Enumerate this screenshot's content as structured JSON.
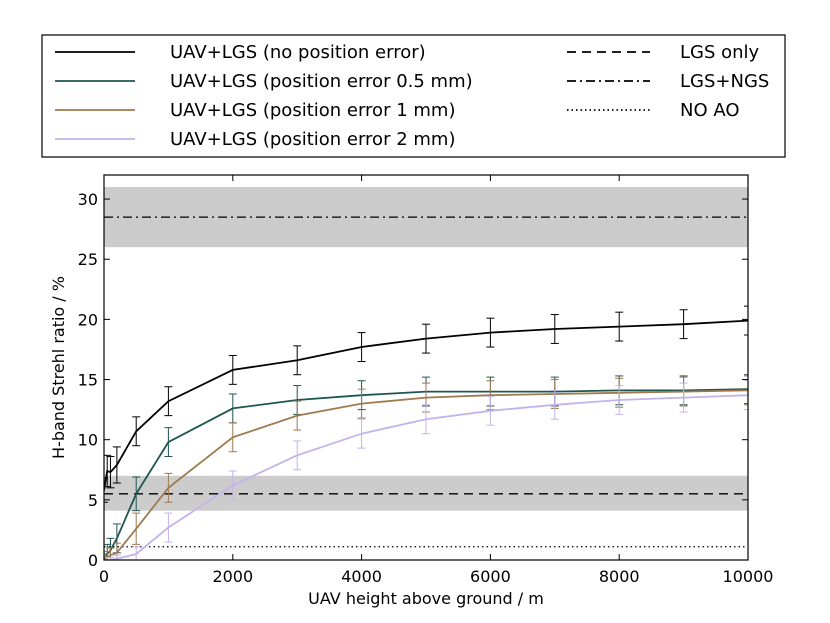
{
  "chart_data": {
    "type": "line",
    "title": "",
    "xlabel": "UAV height above ground / m",
    "ylabel": "H-band Strehl ratio / %",
    "xlim": [
      0,
      10000
    ],
    "ylim": [
      0,
      32
    ],
    "xticks": [
      0,
      2000,
      4000,
      6000,
      8000,
      10000
    ],
    "xtick_labels": [
      "0",
      "2000",
      "4000",
      "6000",
      "8000",
      "10000"
    ],
    "yticks": [
      0,
      5,
      10,
      15,
      20,
      25,
      30
    ],
    "ytick_labels": [
      "0",
      "5",
      "10",
      "15",
      "20",
      "25",
      "30"
    ],
    "grid": false,
    "legend_position": "top, above plot",
    "series": [
      {
        "name": "UAV+LGS (no position error)",
        "color": "#000000",
        "x": [
          0,
          50,
          100,
          200,
          500,
          1000,
          2000,
          3000,
          4000,
          5000,
          6000,
          7000,
          8000,
          9000,
          10000
        ],
        "y": [
          5.8,
          7.4,
          7.3,
          7.9,
          10.7,
          13.2,
          15.8,
          16.6,
          17.7,
          18.4,
          18.9,
          19.2,
          19.4,
          19.6,
          19.9
        ],
        "err": [
          1.0,
          1.3,
          1.3,
          1.5,
          1.2,
          1.2,
          1.2,
          1.2,
          1.2,
          1.2,
          1.2,
          1.2,
          1.2,
          1.2,
          1.2
        ]
      },
      {
        "name": "UAV+LGS (position error 0.5 mm)",
        "color": "#1e5652",
        "x": [
          0,
          50,
          100,
          200,
          500,
          1000,
          2000,
          3000,
          4000,
          5000,
          6000,
          7000,
          8000,
          9000,
          10000
        ],
        "y": [
          0.0,
          0.5,
          0.8,
          1.8,
          5.5,
          9.8,
          12.6,
          13.3,
          13.7,
          14.0,
          14.0,
          14.0,
          14.1,
          14.1,
          14.2
        ],
        "err": [
          0.5,
          0.8,
          1.0,
          1.2,
          1.4,
          1.2,
          1.2,
          1.2,
          1.2,
          1.2,
          1.2,
          1.2,
          1.2,
          1.2,
          1.2
        ]
      },
      {
        "name": "UAV+LGS (position error 1 mm)",
        "color": "#a0794e",
        "x": [
          0,
          50,
          100,
          200,
          500,
          1000,
          2000,
          3000,
          4000,
          5000,
          6000,
          7000,
          8000,
          9000,
          10000
        ],
        "y": [
          0.0,
          0.2,
          0.4,
          0.6,
          2.6,
          6.0,
          10.2,
          12.0,
          13.0,
          13.5,
          13.7,
          13.8,
          13.9,
          14.0,
          14.1
        ],
        "err": [
          0.3,
          0.5,
          0.6,
          0.8,
          1.3,
          1.2,
          1.2,
          1.2,
          1.2,
          1.2,
          1.2,
          1.2,
          1.2,
          1.2,
          1.2
        ]
      },
      {
        "name": "UAV+LGS (position error 2 mm)",
        "color": "#c3b3ec",
        "x": [
          0,
          50,
          100,
          200,
          500,
          1000,
          2000,
          3000,
          4000,
          5000,
          6000,
          7000,
          8000,
          9000,
          10000
        ],
        "y": [
          0.0,
          0.0,
          0.0,
          0.1,
          0.5,
          2.7,
          6.2,
          8.7,
          10.5,
          11.7,
          12.4,
          12.9,
          13.3,
          13.5,
          13.7
        ],
        "err": [
          0.2,
          0.2,
          0.2,
          0.3,
          0.6,
          1.2,
          1.2,
          1.2,
          1.2,
          1.2,
          1.2,
          1.2,
          1.2,
          1.2,
          1.2
        ]
      }
    ],
    "reference_lines": [
      {
        "name": "LGS only",
        "value": 5.5,
        "band": [
          4.1,
          7.0
        ],
        "style": "dashed"
      },
      {
        "name": "LGS+NGS",
        "value": 28.5,
        "band": [
          26.0,
          31.0
        ],
        "style": "dashdot"
      },
      {
        "name": "NO AO",
        "value": 1.1,
        "style": "dotted"
      }
    ],
    "band_color": "#cccccc"
  }
}
